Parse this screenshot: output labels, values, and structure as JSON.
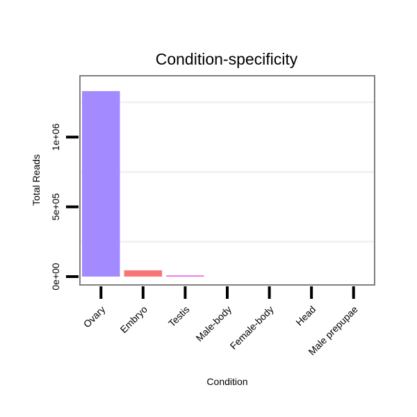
{
  "chart_data": {
    "type": "bar",
    "title": "Condition-specificity",
    "xlabel": "Condition",
    "ylabel": "Total Reads",
    "categories": [
      "Ovary",
      "Embryo",
      "Testis",
      "Male-body",
      "Female-body",
      "Head",
      "Male prepupae"
    ],
    "values": [
      1330000,
      45000,
      8000,
      0,
      0,
      0,
      0
    ],
    "colors": [
      "#a38bff",
      "#f87575",
      "#f05ae3",
      "#cccccc",
      "#cccccc",
      "#cccccc",
      "#cccccc"
    ],
    "y_ticks": [
      0,
      500000,
      1000000
    ],
    "y_tick_labels": [
      "0e+00",
      "5e+05",
      "1e+06"
    ],
    "gridlines": [
      250000,
      750000,
      1250000
    ],
    "ylim": [
      -60000,
      1440000
    ],
    "grid_color": "#f2f2f2",
    "frame_color": "#7f7f7f"
  }
}
